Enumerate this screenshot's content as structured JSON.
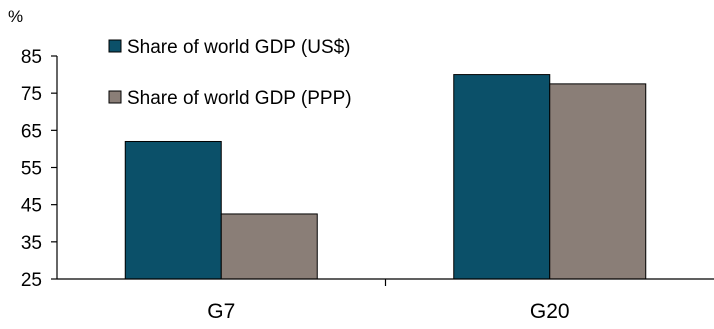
{
  "chart_data": {
    "type": "bar",
    "title": "",
    "ylabel": "%",
    "xlabel": "",
    "categories": [
      "G7",
      "G20"
    ],
    "series": [
      {
        "name": "Share of world GDP (US$)",
        "color": "#0b5069",
        "values": [
          62,
          80
        ]
      },
      {
        "name": "Share of world GDP (PPP)",
        "color": "#8a7e77",
        "values": [
          42.5,
          77.5
        ]
      }
    ],
    "ylim": [
      25,
      85
    ],
    "yticks": [
      25,
      35,
      45,
      55,
      65,
      75,
      85
    ],
    "grid": false,
    "legend_position": "top-left"
  }
}
